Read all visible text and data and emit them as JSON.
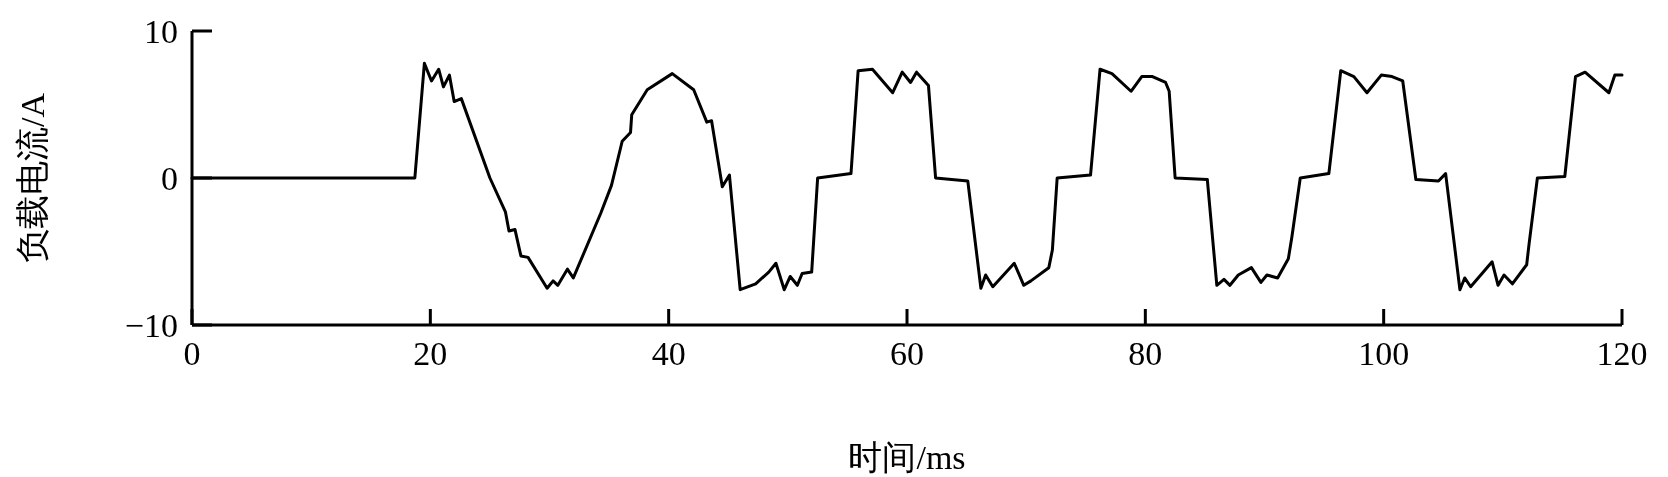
{
  "chart_data": {
    "type": "line",
    "xlabel": "时间/ms",
    "ylabel": "负载电流/A",
    "xlim": [
      0,
      120
    ],
    "ylim": [
      -10,
      10
    ],
    "xticks": [
      0,
      20,
      40,
      60,
      80,
      100,
      120
    ],
    "yticks": [
      {
        "value": -10,
        "label": "−10"
      },
      0,
      10
    ],
    "series": [
      {
        "color": "#000000",
        "x": [
          0,
          18.7,
          19.5,
          20.1,
          20.7,
          21.1,
          21.6,
          22.0,
          22.6,
          25.0,
          26.3,
          26.6,
          27.1,
          27.6,
          28.2,
          29.8,
          30.3,
          30.7,
          31.5,
          32.0,
          34.3,
          35.2,
          36.1,
          36.8,
          36.9,
          38.2,
          40.3,
          42.1,
          43.2,
          43.6,
          44.5,
          45.1,
          46.0,
          47.3,
          48.4,
          49.0,
          49.7,
          50.2,
          50.8,
          51.2,
          52.0,
          52.5,
          55.3,
          55.9,
          57.1,
          58.8,
          59.6,
          60.3,
          60.8,
          61.8,
          62.4,
          65.1,
          66.2,
          66.6,
          67.2,
          69.0,
          69.8,
          70.4,
          71.9,
          72.2,
          72.6,
          75.4,
          76.2,
          77.2,
          78.8,
          79.7,
          80.6,
          81.7,
          82.0,
          82.5,
          85.2,
          86.0,
          86.6,
          87.1,
          87.8,
          88.9,
          89.7,
          90.2,
          91.1,
          92.0,
          92.3,
          93.0,
          95.4,
          96.4,
          97.5,
          98.6,
          99.8,
          100.7,
          101.6,
          102.7,
          104.6,
          105.2,
          106.4,
          106.8,
          107.3,
          109.1,
          109.6,
          110.1,
          110.8,
          112.0,
          112.2,
          112.9,
          115.2,
          116.1,
          116.9,
          118.9,
          119.4,
          120.0
        ],
        "values": [
          0,
          0,
          7.8,
          6.6,
          7.4,
          6.2,
          7.0,
          5.2,
          5.4,
          0,
          -2.3,
          -3.6,
          -3.5,
          -5.3,
          -5.4,
          -7.5,
          -7.0,
          -7.3,
          -6.2,
          -6.8,
          -2.4,
          -0.5,
          2.5,
          3.1,
          4.3,
          6.0,
          7.1,
          6.0,
          3.8,
          3.9,
          -0.6,
          0.2,
          -7.6,
          -7.2,
          -6.4,
          -5.8,
          -7.6,
          -6.7,
          -7.3,
          -6.5,
          -6.4,
          0,
          0.3,
          7.3,
          7.4,
          5.8,
          7.2,
          6.5,
          7.2,
          6.3,
          0,
          -0.2,
          -7.5,
          -6.6,
          -7.4,
          -5.8,
          -7.3,
          -7.0,
          -6.1,
          -4.9,
          0,
          0.2,
          7.4,
          7.1,
          5.9,
          6.9,
          6.9,
          6.5,
          5.9,
          0,
          -0.1,
          -7.3,
          -6.9,
          -7.3,
          -6.6,
          -6.1,
          -7.1,
          -6.6,
          -6.8,
          -5.5,
          -4.0,
          0,
          0.3,
          7.3,
          6.9,
          5.8,
          7.0,
          6.9,
          6.6,
          -0.1,
          -0.2,
          0.3,
          -7.6,
          -6.8,
          -7.4,
          -5.7,
          -7.3,
          -6.6,
          -7.2,
          -5.9,
          -4.5,
          0,
          0.1,
          6.9,
          7.2,
          5.8,
          7.0,
          7.0
        ]
      }
    ]
  }
}
